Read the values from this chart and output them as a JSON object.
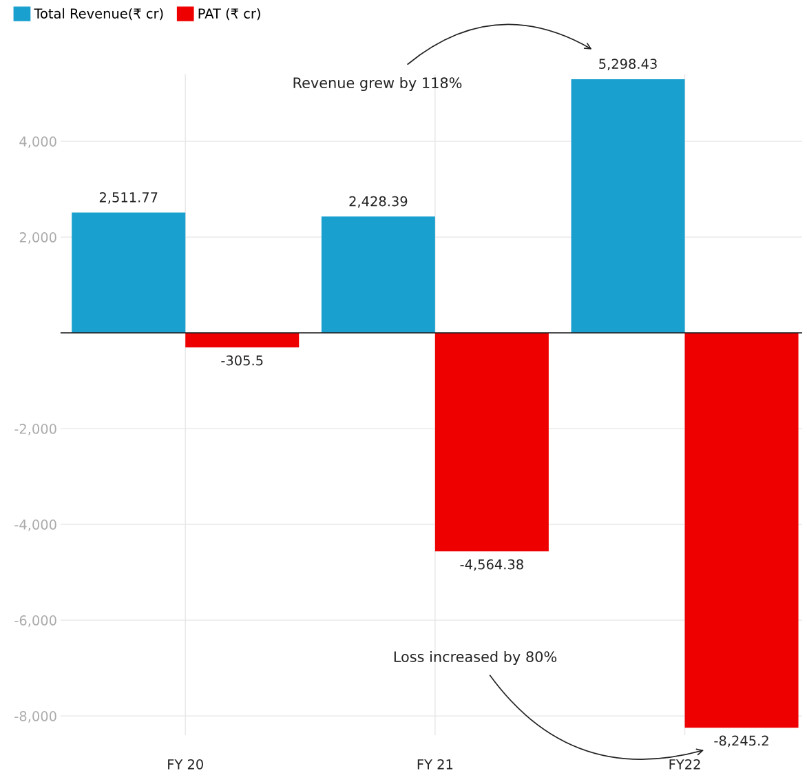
{
  "chart_data": {
    "type": "bar",
    "categories": [
      "FY 20",
      "FY 21",
      "FY22"
    ],
    "series": [
      {
        "name": "Total Revenue(₹ cr)",
        "color": "#1aa0cf",
        "values": [
          2511.77,
          2428.39,
          5298.43
        ],
        "value_labels": [
          "2,511.77",
          "2,428.39",
          "5,298.43"
        ]
      },
      {
        "name": "PAT (₹ cr)",
        "color": "#ee0000",
        "values": [
          -305.5,
          -4564.38,
          -8245.2
        ],
        "value_labels": [
          "-305.5",
          "-4,564.38",
          "-8,245.2"
        ]
      }
    ],
    "ylim": [
      -8400,
      5400
    ],
    "yticks": [
      {
        "value": -8000,
        "label": "-8,000"
      },
      {
        "value": -6000,
        "label": "-6,000"
      },
      {
        "value": -4000,
        "label": "-4,000"
      },
      {
        "value": -2000,
        "label": "-2,000"
      },
      {
        "value": 0,
        "label": null
      },
      {
        "value": 2000,
        "label": "2,000"
      },
      {
        "value": 4000,
        "label": "4,000"
      }
    ],
    "grid": true,
    "legend": "top left",
    "annotations": [
      "Revenue grew by 118%",
      "Loss increased by 80%"
    ]
  }
}
